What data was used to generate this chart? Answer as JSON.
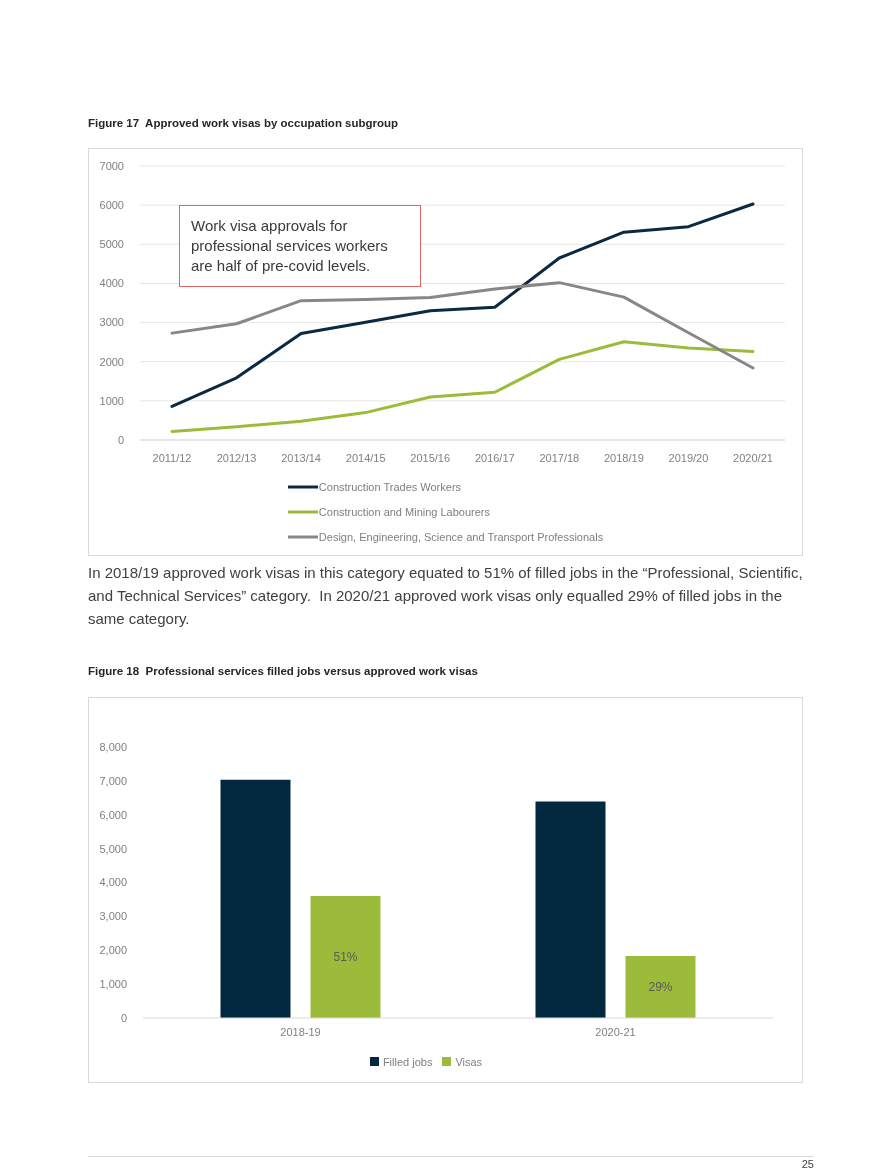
{
  "chart_data": [
    {
      "type": "line",
      "title": "Figure 17  Approved work visas by occupation subgroup",
      "categories": [
        "2011/12",
        "2012/13",
        "2013/14",
        "2014/15",
        "2015/16",
        "2016/17",
        "2017/18",
        "2018/19",
        "2019/20",
        "2020/21"
      ],
      "series": [
        {
          "name": "Construction Trades Workers",
          "color": "#0b2940",
          "values": [
            860,
            1590,
            2720,
            3010,
            3300,
            3390,
            4650,
            5310,
            5450,
            6030
          ]
        },
        {
          "name": "Construction and Mining Labourers",
          "color": "#9dbb3b",
          "values": [
            220,
            340,
            480,
            700,
            1100,
            1220,
            2060,
            2510,
            2350,
            2260
          ]
        },
        {
          "name": "Design, Engineering, Science and Transport Professionals",
          "color": "#878787",
          "values": [
            2730,
            2970,
            3560,
            3590,
            3640,
            3860,
            4020,
            3650,
            2740,
            1840
          ]
        }
      ],
      "ylim": [
        0,
        7000
      ],
      "yticks": [
        0,
        1000,
        2000,
        3000,
        4000,
        5000,
        6000,
        7000
      ],
      "grid": "y",
      "legend": "bottom",
      "marker": "none",
      "line_style": "solid",
      "annotations": [
        "Work visa approvals for professional services workers are half of pre-covid levels.",
        "In 2018/19 approved work visas in this category equated to 51% of filled jobs in the “Professional, Scientific, and Technical Services” category.  In 2020/21 approved work visas only equalled 29% of filled jobs in the same category."
      ]
    },
    {
      "type": "bar",
      "title": "Figure 18  Professional services filled jobs versus approved work visas",
      "categories": [
        "2018-19",
        "2020-21"
      ],
      "series": [
        {
          "name": "Filled jobs",
          "color": "#02283f",
          "values": [
            7030,
            6390
          ]
        },
        {
          "name": "Visas",
          "color": "#9dbb3b",
          "values": [
            3600,
            1830
          ]
        }
      ],
      "ylim": [
        0,
        8000
      ],
      "yticks": [
        0,
        {
          "value": 1000,
          "label": "1,000"
        },
        {
          "value": 2000,
          "label": "2,000"
        },
        {
          "value": 3000,
          "label": "3,000"
        },
        {
          "value": 4000,
          "label": "4,000"
        },
        {
          "value": 5000,
          "label": "5,000"
        },
        {
          "value": 6000,
          "label": "6,000"
        },
        {
          "value": 7000,
          "label": "7,000"
        },
        {
          "value": 8000,
          "label": "8,000"
        }
      ],
      "legend": "bottom",
      "annotations": [
        "51%",
        "29%",
        "25"
      ]
    }
  ]
}
